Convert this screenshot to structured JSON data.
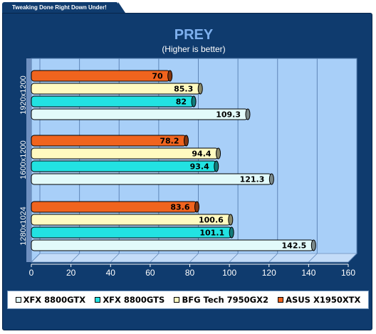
{
  "banner": {
    "text": "Tweaking Done Right Down Under!"
  },
  "chart_data": {
    "type": "bar",
    "orientation": "horizontal",
    "title": "PREY",
    "subtitle": "(Higher is better)",
    "xlabel": "",
    "ylabel": "",
    "xlim": [
      0,
      160
    ],
    "ticks": [
      0,
      20,
      40,
      60,
      80,
      100,
      120,
      140,
      160
    ],
    "grid": true,
    "legend_position": "bottom",
    "categories": [
      "1920x1200",
      "1600x1200",
      "1280x1024"
    ],
    "series": [
      {
        "name": "ASUS X1950XTX",
        "color": "#f0641e",
        "values": [
          70,
          78.2,
          83.6
        ],
        "labels": [
          "70",
          "78.2",
          "83.6"
        ]
      },
      {
        "name": "BFG Tech 7950GX2",
        "color": "#fffac0",
        "values": [
          85.3,
          94.4,
          100.6
        ],
        "labels": [
          "85.3",
          "94.4",
          "100.6"
        ]
      },
      {
        "name": "XFX 8800GTS",
        "color": "#22e2e2",
        "values": [
          82,
          93.4,
          101.1
        ],
        "labels": [
          "82",
          "93.4",
          "101.1"
        ]
      },
      {
        "name": "XFX 8800GTX",
        "color": "#e2fafa",
        "values": [
          109.3,
          121.3,
          142.5
        ],
        "labels": [
          "109.3",
          "121.3",
          "142.5"
        ]
      }
    ],
    "legend_order": [
      "XFX 8800GTX",
      "XFX 8800GTS",
      "BFG Tech 7950GX2",
      "ASUS X1950XTX"
    ]
  },
  "colors": {
    "frame": "#0f3b6e",
    "plot_area": "#a8cff8",
    "grid": "#5f86b7",
    "title": "#7eb0ee",
    "bar_outline": "#000000"
  }
}
